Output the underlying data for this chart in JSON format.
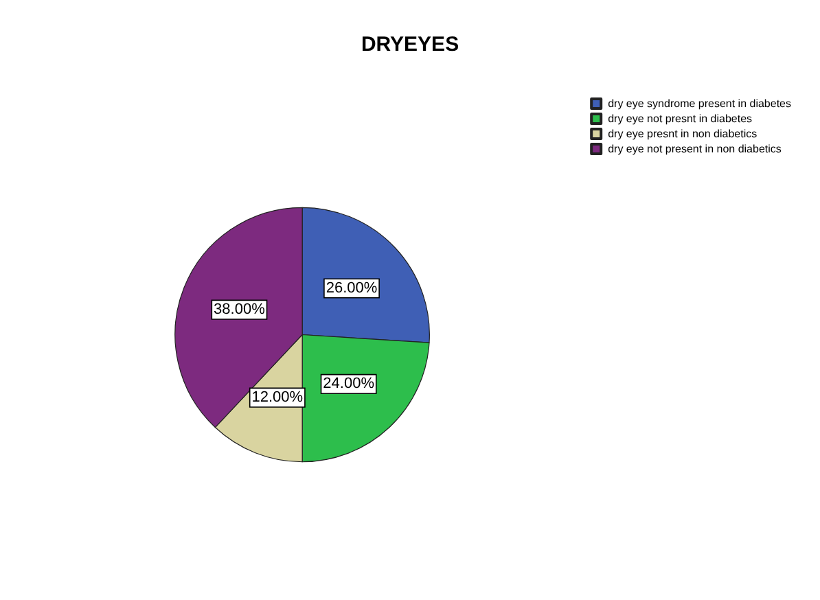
{
  "chart_data": {
    "type": "pie",
    "title": "DRYEYES",
    "categories": [
      "dry eye syndrome present in diabetes",
      "dry eye not presnt in diabetes",
      "dry eye presnt in non diabetics",
      "dry eye not present in non diabetics"
    ],
    "values": [
      26,
      24,
      12,
      38
    ],
    "value_labels": [
      "26.00%",
      "24.00%",
      "12.00%",
      "38.00%"
    ],
    "colors": [
      "#3f5fb5",
      "#2dbe4c",
      "#d9d4a0",
      "#7d2a7f"
    ],
    "legend": "top right"
  }
}
